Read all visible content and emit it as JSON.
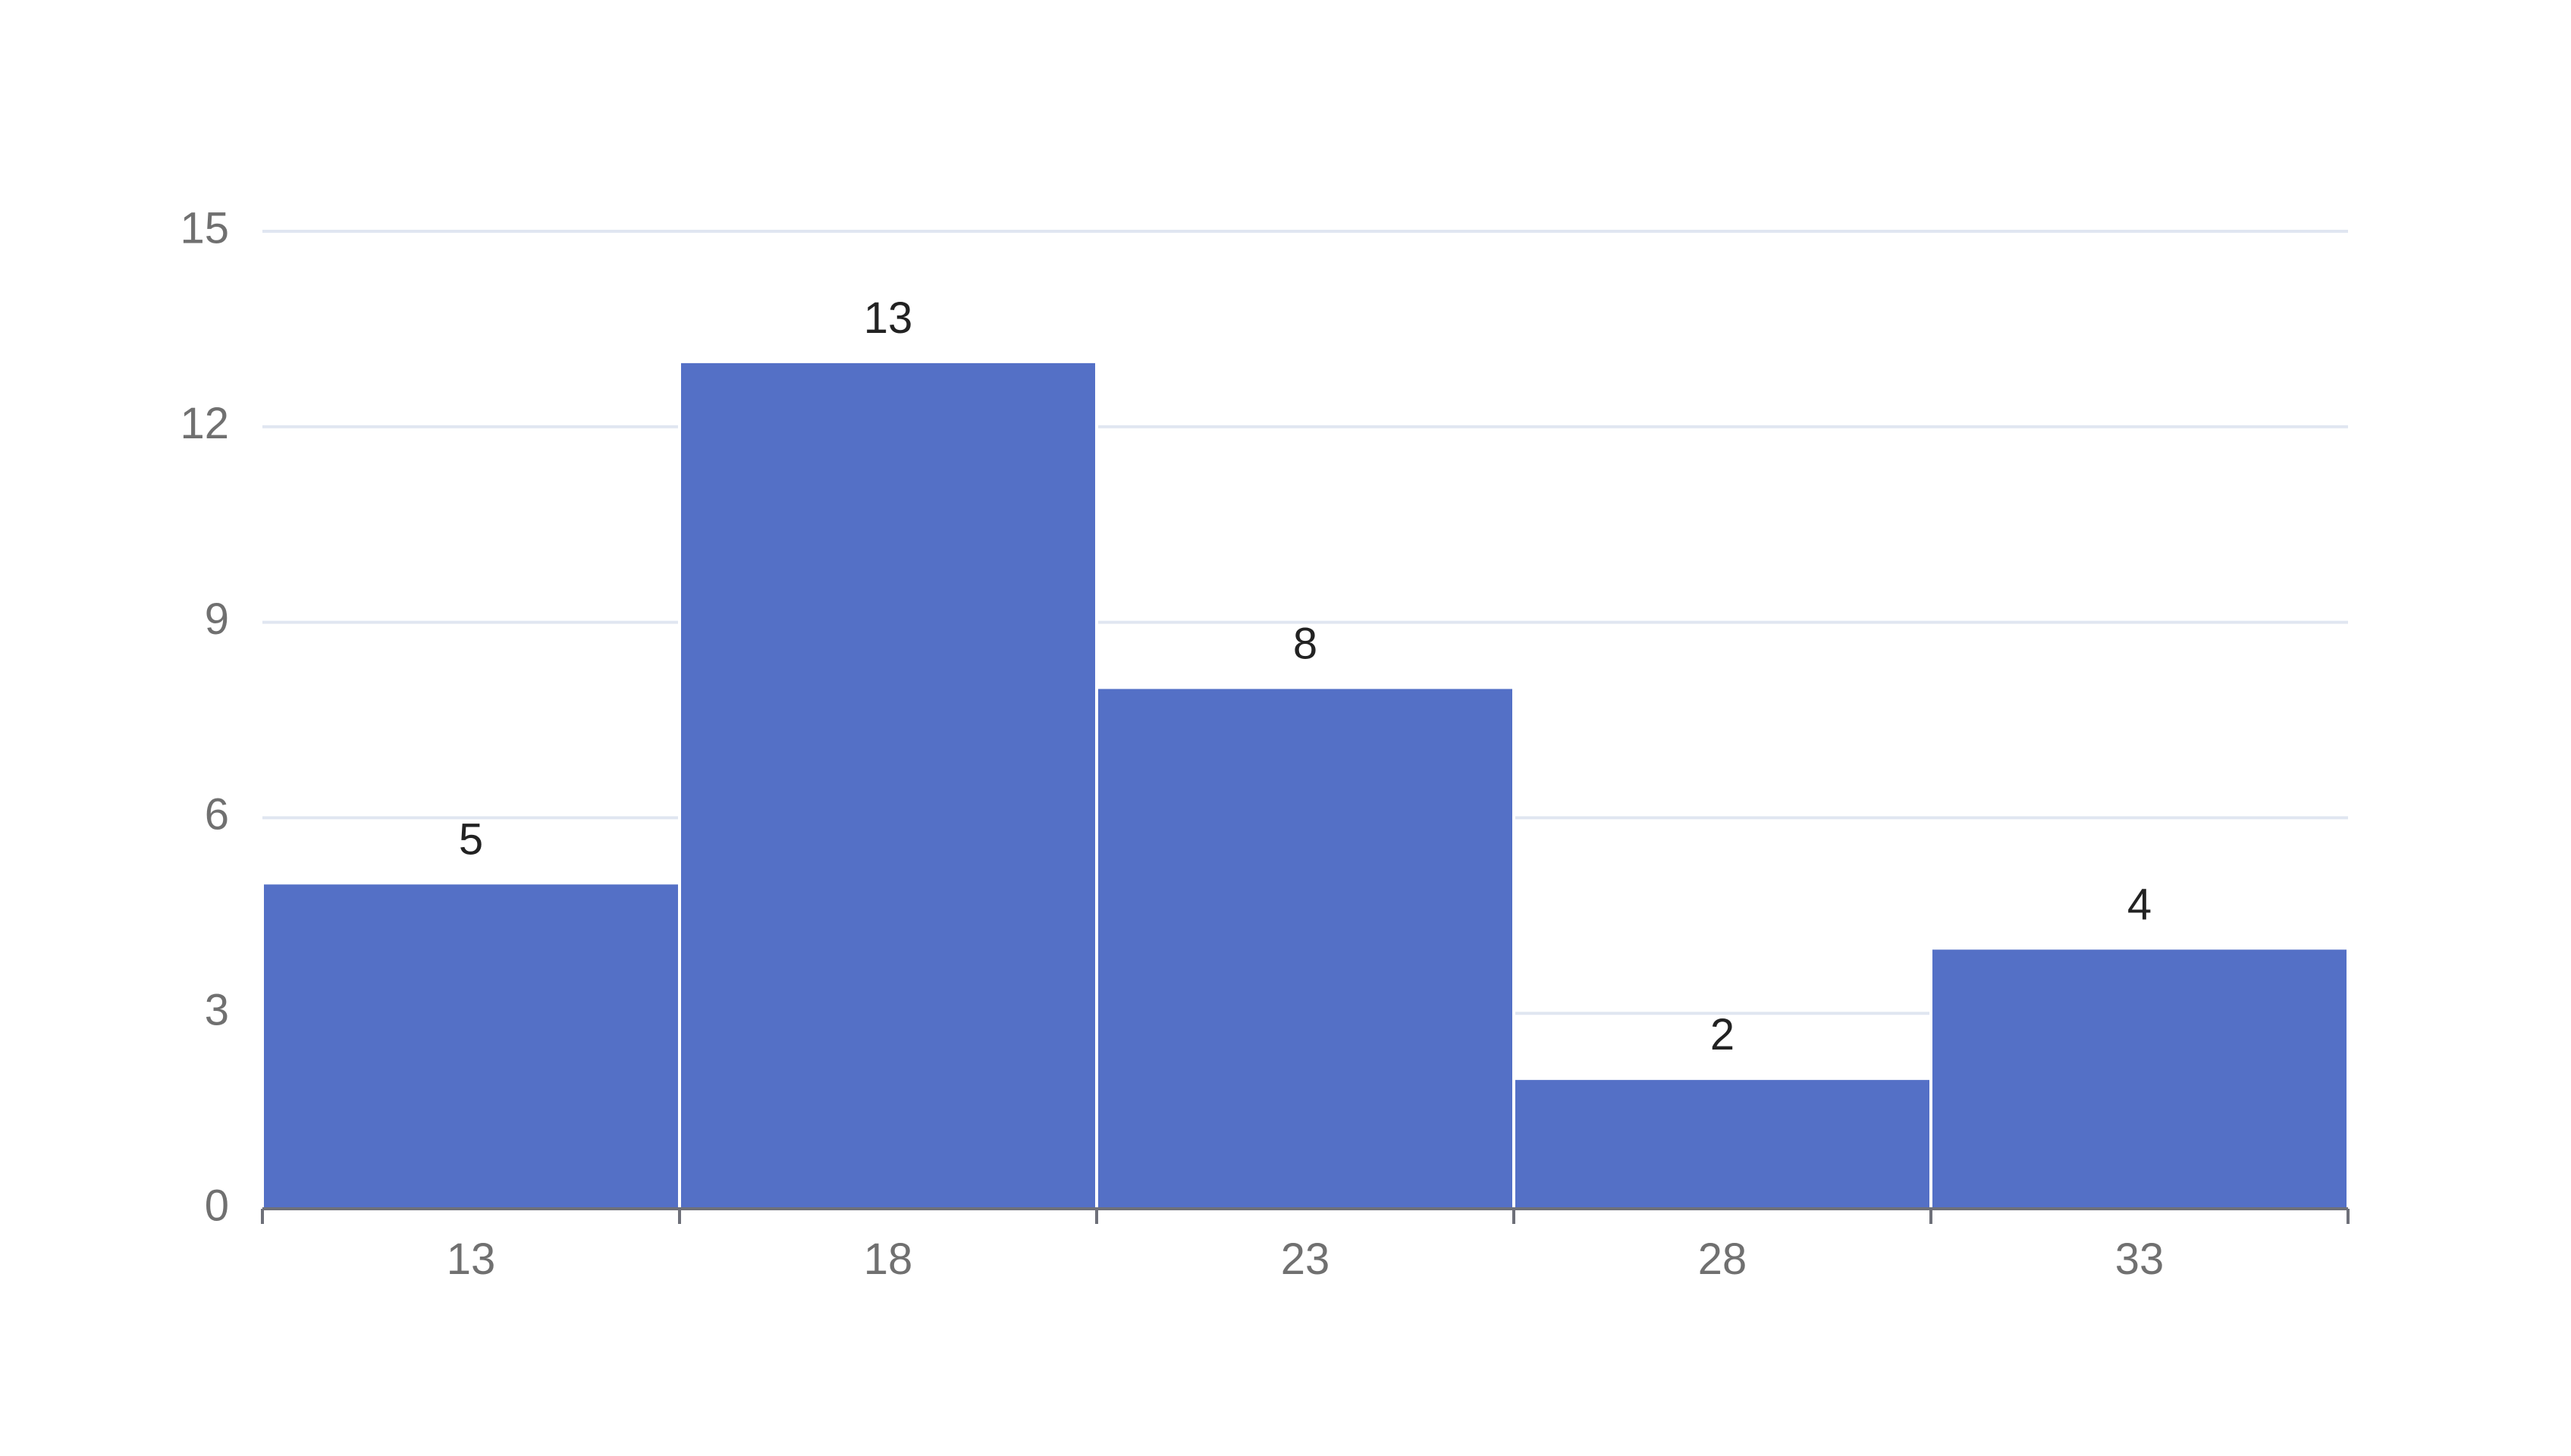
{
  "chart_data": {
    "type": "bar",
    "variant": "histogram",
    "categories": [
      "13",
      "18",
      "23",
      "28",
      "33"
    ],
    "values": [
      5,
      13,
      8,
      2,
      4
    ],
    "data_labels": [
      "5",
      "13",
      "8",
      "2",
      "4"
    ],
    "title": "",
    "xlabel": "",
    "ylabel": "",
    "ylim": [
      0,
      15
    ],
    "yticks": [
      0,
      3,
      6,
      9,
      12,
      15
    ],
    "ytick_labels": [
      "0",
      "3",
      "6",
      "9",
      "12",
      "15"
    ],
    "grid": true,
    "legend": "none",
    "colors": {
      "bar": "#5470C6",
      "grid": "#E0E6F1",
      "axis": "#6E7079",
      "tick_text": "#707070",
      "label_text": "#222222",
      "bar_border": "#ffffff"
    }
  }
}
